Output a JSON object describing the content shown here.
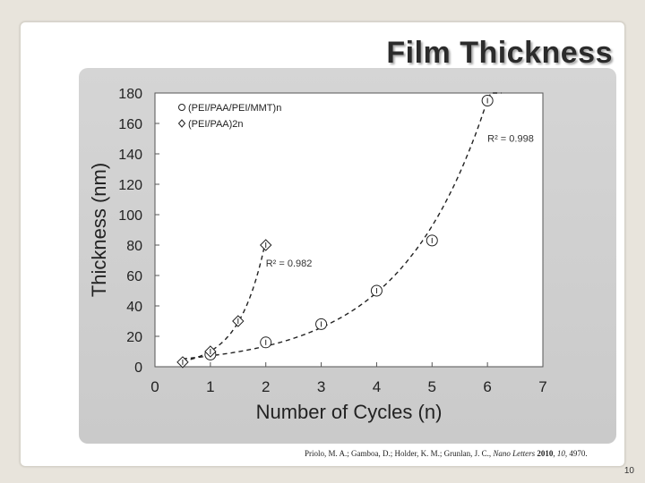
{
  "slide": {
    "title": "Film Thickness",
    "citation": {
      "prefix": "Priolo, M. A.; Gamboa, D.; Holder, K. M.; Grunlan, J. C., ",
      "journal": "Nano Letters",
      "year": " 2010",
      "sep1": ", ",
      "volume": "10",
      "pages": ", 4970."
    },
    "page_number": "10"
  },
  "chart_data": {
    "type": "scatter",
    "title": "",
    "xlabel": "Number of Cycles (n)",
    "ylabel": "Thickness (nm)",
    "xlim": [
      0,
      7
    ],
    "ylim": [
      0,
      180
    ],
    "x_ticks": [
      0,
      1,
      2,
      3,
      4,
      5,
      6,
      7
    ],
    "y_ticks": [
      0,
      20,
      40,
      60,
      80,
      100,
      120,
      140,
      160,
      180
    ],
    "grid": false,
    "legend_position": "top-left",
    "series": [
      {
        "name": "(PEI/PAA/PEI/MMT)n",
        "marker": "circle",
        "points": [
          {
            "x": 1,
            "y": 8
          },
          {
            "x": 2,
            "y": 16
          },
          {
            "x": 3,
            "y": 28
          },
          {
            "x": 4,
            "y": 50
          },
          {
            "x": 5,
            "y": 83
          },
          {
            "x": 6,
            "y": 175
          }
        ],
        "fit": {
          "type": "exponential",
          "a": 3.77,
          "b": 0.64,
          "x_range": [
            0.5,
            6.25
          ],
          "r2_label": "R² = 0.998"
        }
      },
      {
        "name": "(PEI/PAA)2n",
        "marker": "diamond",
        "points": [
          {
            "x": 0.5,
            "y": 3
          },
          {
            "x": 1,
            "y": 10
          },
          {
            "x": 1.5,
            "y": 30
          },
          {
            "x": 2,
            "y": 80
          }
        ],
        "fit": {
          "type": "exponential",
          "a": 1.25,
          "b": 2.1,
          "x_range": [
            0.5,
            2.0
          ],
          "r2_label": "R² = 0.982"
        }
      }
    ]
  }
}
